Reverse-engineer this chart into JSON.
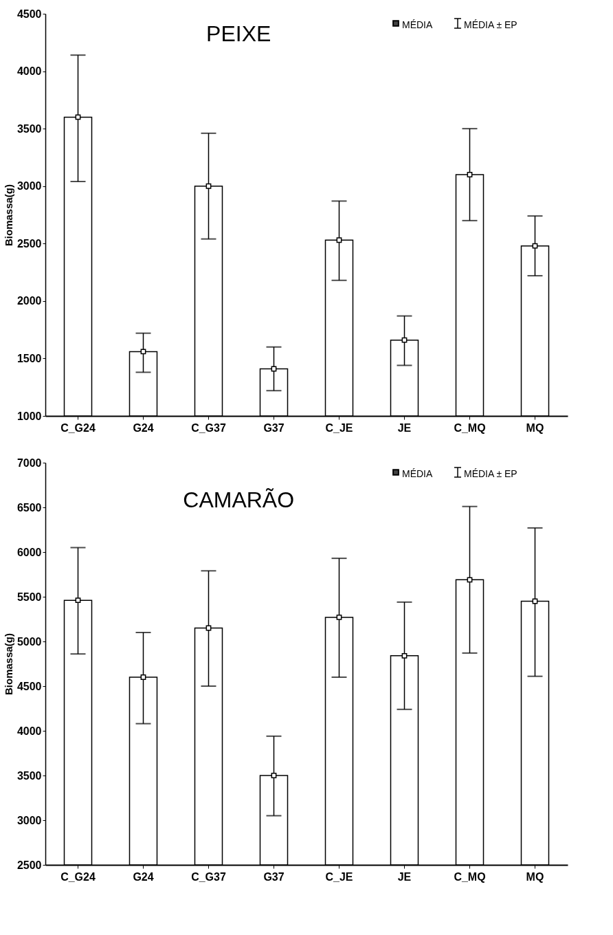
{
  "chart_data": [
    {
      "type": "bar",
      "title": "PEIXE",
      "ylabel": "Biomassa(g)",
      "categories": [
        "C_G24",
        "G24",
        "C_G37",
        "G37",
        "C_JE",
        "JE",
        "C_MQ",
        "MQ"
      ],
      "series": [
        {
          "color": "#ffffff",
          "values": [
            3600,
            1560,
            3000,
            1410,
            2530,
            1660,
            3100,
            2480
          ],
          "errors": [
            [
              3040,
              4140
            ],
            [
              1380,
              1720
            ],
            [
              2540,
              3460
            ],
            [
              1220,
              1600
            ],
            [
              2180,
              2870
            ],
            [
              1440,
              1870
            ],
            [
              2700,
              3500
            ],
            [
              2220,
              2740
            ]
          ]
        },
        {
          "type": "scatter",
          "name": "MÉDIA",
          "color": "#ffffff",
          "x": [
            "C_G24",
            "G24",
            "C_G37",
            "G37",
            "C_JE",
            "JE",
            "C_MQ",
            "MQ"
          ],
          "values": [
            3600,
            1560,
            3000,
            1410,
            2530,
            1660,
            3100,
            2480
          ]
        }
      ],
      "ylim": [
        1000,
        4500
      ],
      "yticks": [
        1000,
        1500,
        2000,
        2500,
        3000,
        3500,
        4000,
        4500
      ],
      "marker": "square",
      "legend": "top right",
      "annotations": [
        "MÉDIA ± EP"
      ]
    },
    {
      "type": "bar",
      "title": "CAMARÃO",
      "ylabel": "Biomassa(g)",
      "categories": [
        "C_G24",
        "G24",
        "C_G37",
        "G37",
        "C_JE",
        "JE",
        "C_MQ",
        "MQ"
      ],
      "series": [
        {
          "color": "#ffffff",
          "values": [
            5460,
            4600,
            5150,
            3500,
            5270,
            4840,
            5690,
            5450
          ],
          "errors": [
            [
              4860,
              6050
            ],
            [
              4080,
              5100
            ],
            [
              4500,
              5790
            ],
            [
              3050,
              3940
            ],
            [
              4600,
              5930
            ],
            [
              4240,
              5440
            ],
            [
              4870,
              6510
            ],
            [
              4610,
              6270
            ]
          ]
        },
        {
          "type": "scatter",
          "name": "MÉDIA",
          "color": "#ffffff",
          "x": [
            "C_G24",
            "G24",
            "C_G37",
            "G37",
            "C_JE",
            "JE",
            "C_MQ",
            "MQ"
          ],
          "values": [
            5460,
            4600,
            5150,
            3500,
            5270,
            4840,
            5690,
            5450
          ]
        }
      ],
      "ylim": [
        2500,
        7000
      ],
      "yticks": [
        2500,
        3000,
        3500,
        4000,
        4500,
        5000,
        5500,
        6000,
        6500,
        7000
      ],
      "marker": "square",
      "legend": "top right",
      "annotations": [
        "MÉDIA ± EP"
      ]
    }
  ]
}
